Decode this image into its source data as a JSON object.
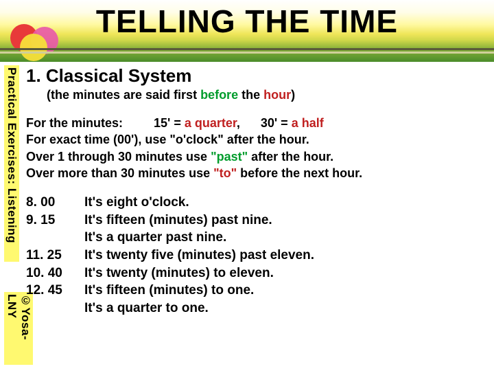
{
  "colors": {
    "hl_green": "#009c2c",
    "hl_red": "#c02020",
    "highlight_bg": "#fff970"
  },
  "title": "TELLING THE TIME",
  "side_label_top": "Practical Exercises: Listening",
  "side_label_bottom": "©Yosa-LNY",
  "heading": "1. Classical System",
  "sub_prefix": "(the minutes are said first ",
  "sub_past": "before",
  "sub_mid": " the ",
  "sub_to": "hour",
  "sub_suffix": ")",
  "rule1_a": "For the minutes:         15' = ",
  "rule1_b": "a quarter",
  "rule1_c": ",      30' = ",
  "rule1_d": "a half",
  "rule2": "For exact time (00'), use \"o'clock\" after the hour.",
  "rule3_a": "Over 1 through 30 minutes use ",
  "rule3_b": "\"past\"",
  "rule3_c": " after the hour.",
  "rule4_a": "Over more than 30 minutes use ",
  "rule4_b": "\"to\"",
  "rule4_c": " before the next hour.",
  "ex": [
    {
      "t": "8. 00",
      "s": "It's eight o'clock."
    },
    {
      "t": "9. 15",
      "s": "It's fifteen (minutes) past nine."
    },
    {
      "t": "",
      "s": "It's a quarter past nine."
    },
    {
      "t": "11. 25",
      "s": "It's twenty five (minutes) past eleven."
    },
    {
      "t": "10. 40",
      "s": "It's twenty (minutes) to eleven."
    },
    {
      "t": "12. 45",
      "s": "It's fifteen (minutes) to one."
    },
    {
      "t": "",
      "s": "It's a quarter to one."
    }
  ]
}
